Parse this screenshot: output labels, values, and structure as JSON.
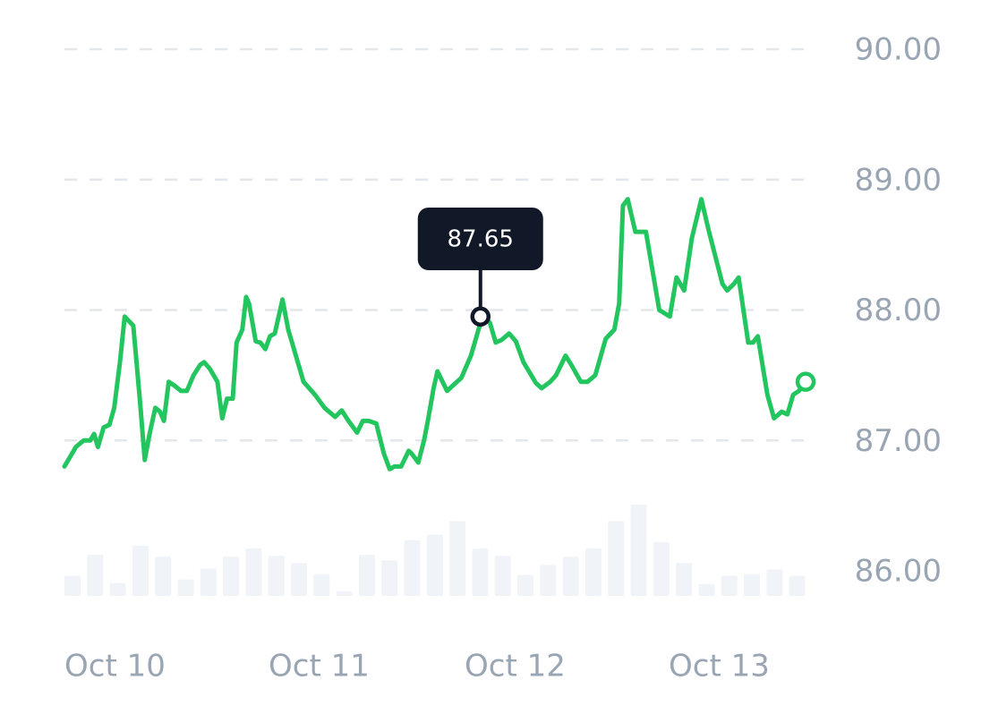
{
  "chart_data": {
    "type": "line",
    "colors": {
      "line": "#22c55e",
      "grid": "#e3e7ec",
      "volume": "#f0f3f7",
      "axis_text": "#9aa5b4",
      "tooltip_bg": "#111827",
      "tooltip_text": "#ffffff"
    },
    "ylim": [
      85.5,
      90.3
    ],
    "yticks": [
      "90.00",
      "89.00",
      "88.00",
      "87.00",
      "86.00"
    ],
    "ytick_values": [
      90,
      89,
      88,
      87,
      86
    ],
    "grid": "dashed-horizontal",
    "xlim": [
      0,
      1
    ],
    "xticks": [
      {
        "label": "Oct 10",
        "x": 0.0
      },
      {
        "label": "Oct 11",
        "x": 0.275
      },
      {
        "label": "Oct 12",
        "x": 0.54
      },
      {
        "label": "Oct 13",
        "x": 0.815
      }
    ],
    "series": [
      {
        "values": [
          [
            0.0,
            86.8
          ],
          [
            0.012,
            86.95
          ],
          [
            0.02,
            87.0
          ],
          [
            0.027,
            87.0
          ],
          [
            0.031,
            87.05
          ],
          [
            0.035,
            86.95
          ],
          [
            0.041,
            87.1
          ],
          [
            0.047,
            87.12
          ],
          [
            0.052,
            87.25
          ],
          [
            0.058,
            87.6
          ],
          [
            0.063,
            87.95
          ],
          [
            0.072,
            87.88
          ],
          [
            0.079,
            87.3
          ],
          [
            0.084,
            86.85
          ],
          [
            0.089,
            87.05
          ],
          [
            0.095,
            87.25
          ],
          [
            0.1,
            87.22
          ],
          [
            0.104,
            87.15
          ],
          [
            0.109,
            87.45
          ],
          [
            0.115,
            87.42
          ],
          [
            0.122,
            87.38
          ],
          [
            0.128,
            87.38
          ],
          [
            0.135,
            87.5
          ],
          [
            0.142,
            87.58
          ],
          [
            0.146,
            87.6
          ],
          [
            0.152,
            87.55
          ],
          [
            0.16,
            87.45
          ],
          [
            0.165,
            87.17
          ],
          [
            0.17,
            87.32
          ],
          [
            0.176,
            87.32
          ],
          [
            0.18,
            87.75
          ],
          [
            0.186,
            87.85
          ],
          [
            0.19,
            88.1
          ],
          [
            0.193,
            88.05
          ],
          [
            0.2,
            87.76
          ],
          [
            0.205,
            87.75
          ],
          [
            0.21,
            87.7
          ],
          [
            0.215,
            87.8
          ],
          [
            0.22,
            87.82
          ],
          [
            0.224,
            87.95
          ],
          [
            0.228,
            88.08
          ],
          [
            0.234,
            87.85
          ],
          [
            0.25,
            87.45
          ],
          [
            0.262,
            87.35
          ],
          [
            0.272,
            87.25
          ],
          [
            0.283,
            87.18
          ],
          [
            0.29,
            87.23
          ],
          [
            0.297,
            87.15
          ],
          [
            0.306,
            87.06
          ],
          [
            0.312,
            87.15
          ],
          [
            0.318,
            87.15
          ],
          [
            0.326,
            87.13
          ],
          [
            0.334,
            86.9
          ],
          [
            0.34,
            86.78
          ],
          [
            0.345,
            86.8
          ],
          [
            0.352,
            86.8
          ],
          [
            0.36,
            86.92
          ],
          [
            0.363,
            86.9
          ],
          [
            0.37,
            86.83
          ],
          [
            0.376,
            87.0
          ],
          [
            0.38,
            87.15
          ],
          [
            0.386,
            87.4
          ],
          [
            0.39,
            87.53
          ],
          [
            0.4,
            87.38
          ],
          [
            0.415,
            87.48
          ],
          [
            0.425,
            87.65
          ],
          [
            0.435,
            87.9
          ],
          [
            0.44,
            87.95
          ],
          [
            0.445,
            87.9
          ],
          [
            0.451,
            87.75
          ],
          [
            0.457,
            87.77
          ],
          [
            0.465,
            87.82
          ],
          [
            0.472,
            87.76
          ],
          [
            0.48,
            87.6
          ],
          [
            0.493,
            87.44
          ],
          [
            0.499,
            87.4
          ],
          [
            0.508,
            87.45
          ],
          [
            0.514,
            87.5
          ],
          [
            0.524,
            87.65
          ],
          [
            0.53,
            87.58
          ],
          [
            0.54,
            87.45
          ],
          [
            0.547,
            87.45
          ],
          [
            0.555,
            87.5
          ],
          [
            0.566,
            87.78
          ],
          [
            0.575,
            87.85
          ],
          [
            0.58,
            88.05
          ],
          [
            0.584,
            88.8
          ],
          [
            0.589,
            88.85
          ],
          [
            0.597,
            88.6
          ],
          [
            0.602,
            88.6
          ],
          [
            0.608,
            88.6
          ],
          [
            0.622,
            88.0
          ],
          [
            0.633,
            87.95
          ],
          [
            0.64,
            88.25
          ],
          [
            0.648,
            88.15
          ],
          [
            0.656,
            88.55
          ],
          [
            0.666,
            88.85
          ],
          [
            0.674,
            88.6
          ],
          [
            0.688,
            88.2
          ],
          [
            0.693,
            88.15
          ],
          [
            0.7,
            88.2
          ],
          [
            0.705,
            88.25
          ],
          [
            0.715,
            87.75
          ],
          [
            0.72,
            87.75
          ],
          [
            0.725,
            87.8
          ],
          [
            0.735,
            87.35
          ],
          [
            0.742,
            87.17
          ],
          [
            0.75,
            87.22
          ],
          [
            0.756,
            87.2
          ],
          [
            0.762,
            87.35
          ],
          [
            0.768,
            87.38
          ],
          [
            0.775,
            87.45
          ]
        ],
        "end_marker": [
          0.775,
          87.45
        ]
      }
    ],
    "tooltip": {
      "label": "87.65",
      "x": 0.435,
      "y": 87.95
    },
    "volume_bars": [
      0.22,
      0.45,
      0.14,
      0.55,
      0.43,
      0.18,
      0.3,
      0.43,
      0.52,
      0.44,
      0.36,
      0.24,
      0.05,
      0.45,
      0.39,
      0.61,
      0.67,
      0.82,
      0.52,
      0.44,
      0.23,
      0.34,
      0.43,
      0.52,
      0.82,
      1.0,
      0.59,
      0.36,
      0.13,
      0.22,
      0.24,
      0.29,
      0.22
    ]
  }
}
